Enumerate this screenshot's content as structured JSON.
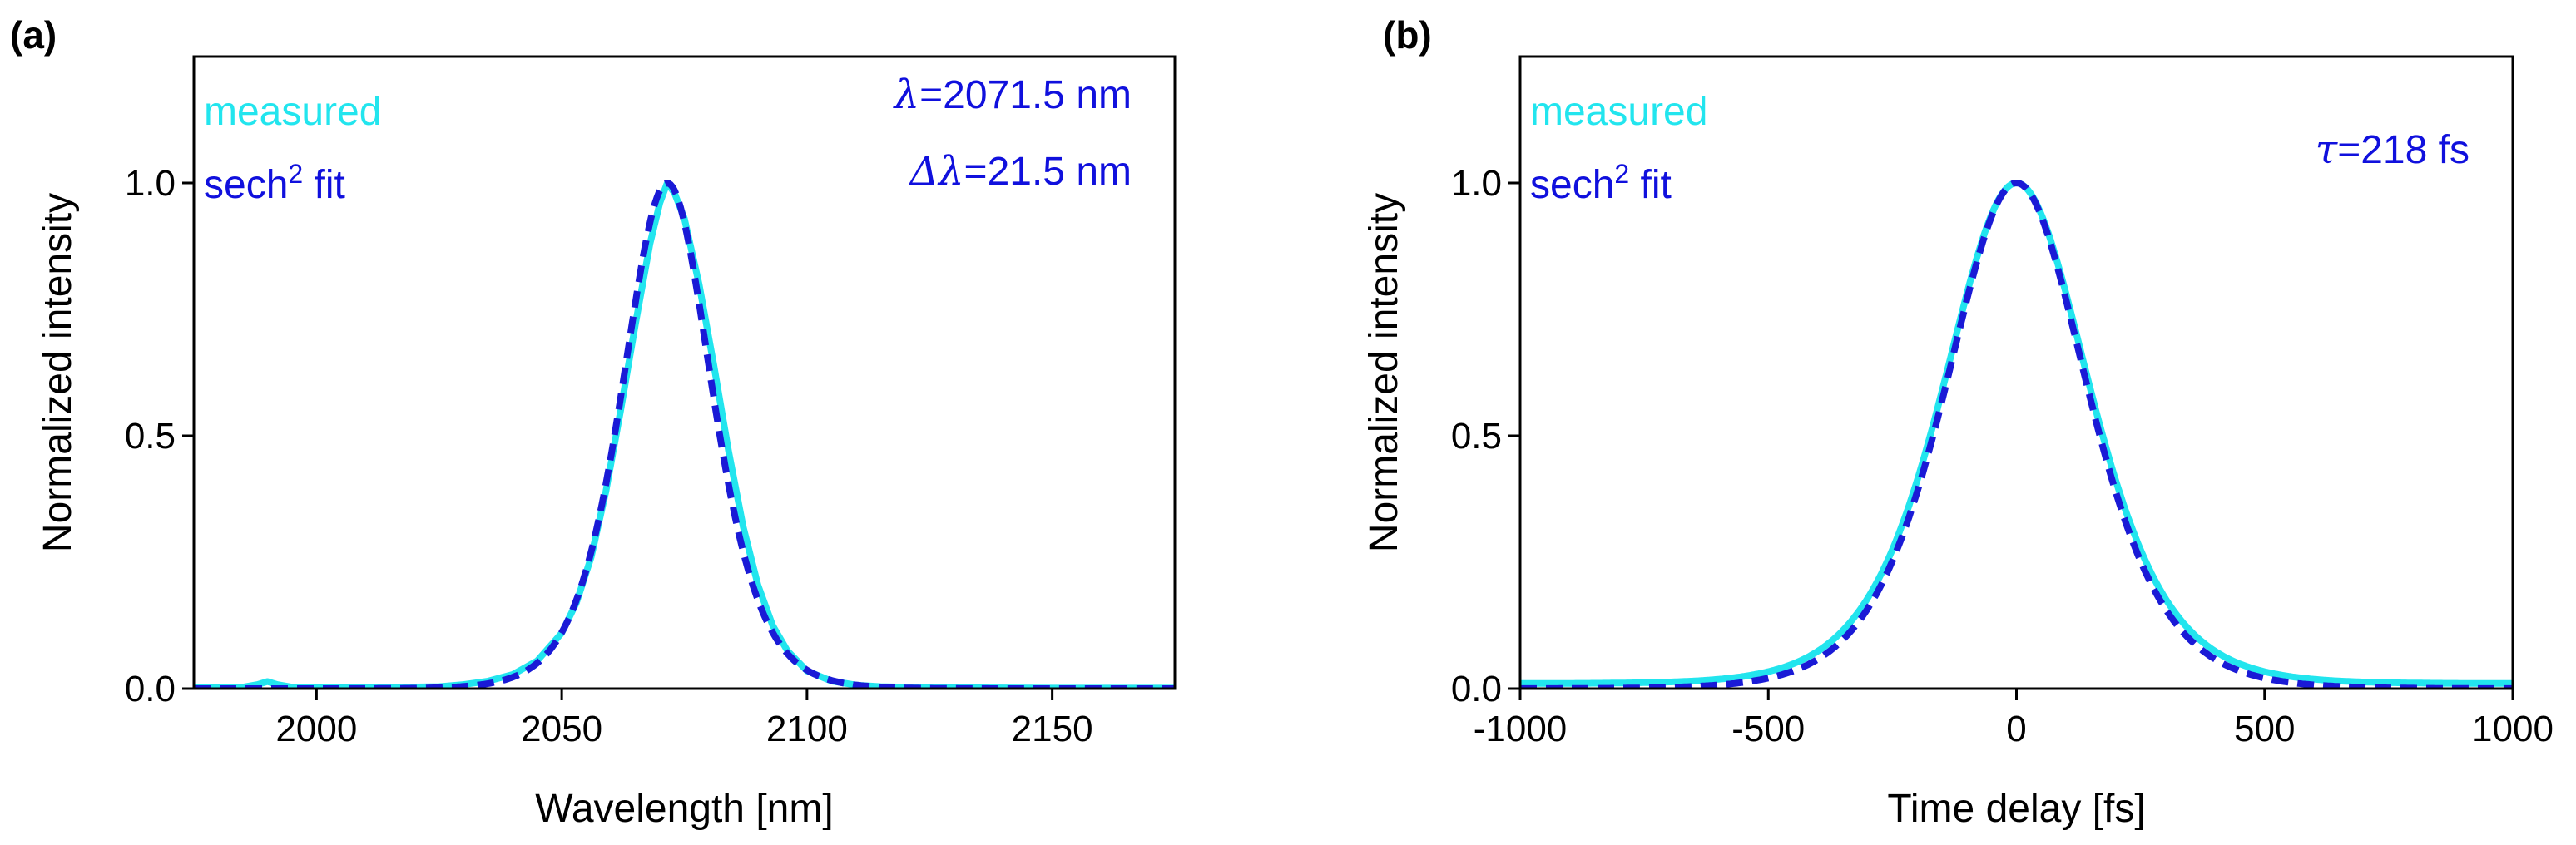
{
  "chart_data": [
    {
      "type": "line",
      "panel_label": "(a)",
      "xlabel": "Wavelength [nm]",
      "ylabel": "Normalized intensity",
      "xlim": [
        1975,
        2175
      ],
      "ylim": [
        0,
        1.25
      ],
      "xticks": [
        2000,
        2050,
        2100,
        2150
      ],
      "xtick_labels": [
        "2000",
        "2050",
        "2100",
        "2150"
      ],
      "yticks": [
        0.0,
        0.5,
        1.0
      ],
      "ytick_labels": [
        "0.0",
        "0.5",
        "1.0"
      ],
      "legend": {
        "position": "top-left",
        "entries": [
          {
            "label": "measured",
            "color": "#22e5ee"
          },
          {
            "label": "sech",
            "superscript": "2",
            "suffix": " fit",
            "color": "#1010dd"
          }
        ]
      },
      "annotations": [
        {
          "symbol": "λ",
          "text": "=2071.5 nm"
        },
        {
          "symbol": "Δλ",
          "text": "=21.5 nm"
        }
      ],
      "series": [
        {
          "name": "measured",
          "color": "#22e5ee",
          "style": "solid",
          "x": [
            1975,
            1985,
            1988,
            1990,
            1992,
            1995,
            2010,
            2025,
            2030,
            2035,
            2040,
            2045,
            2050,
            2053,
            2056,
            2059,
            2062,
            2065,
            2068,
            2070,
            2071.5,
            2073,
            2075,
            2078,
            2081,
            2084,
            2087,
            2090,
            2093,
            2096,
            2100,
            2105,
            2110,
            2115,
            2125,
            2150,
            2175
          ],
          "y": [
            0.002,
            0.003,
            0.008,
            0.014,
            0.008,
            0.003,
            0.002,
            0.004,
            0.008,
            0.015,
            0.028,
            0.055,
            0.11,
            0.17,
            0.26,
            0.39,
            0.55,
            0.72,
            0.88,
            0.96,
            1.0,
            0.98,
            0.93,
            0.8,
            0.64,
            0.47,
            0.32,
            0.205,
            0.125,
            0.075,
            0.035,
            0.015,
            0.007,
            0.004,
            0.002,
            0.001,
            0.001
          ]
        },
        {
          "name": "sech2 fit",
          "color": "#1a1ad6",
          "style": "dashed",
          "fit": {
            "form": "sech2",
            "center": 2071.5,
            "fwhm": 21.5
          }
        }
      ]
    },
    {
      "type": "line",
      "panel_label": "(b)",
      "xlabel": "Time delay [fs]",
      "ylabel": "Normalized intensity",
      "xlim": [
        -1000,
        1000
      ],
      "ylim": [
        0,
        1.25
      ],
      "xticks": [
        -1000,
        -500,
        0,
        500,
        1000
      ],
      "xtick_labels": [
        "-1000",
        "-500",
        "0",
        "500",
        "1000"
      ],
      "yticks": [
        0.0,
        0.5,
        1.0
      ],
      "ytick_labels": [
        "0.0",
        "0.5",
        "1.0"
      ],
      "legend": {
        "position": "top-left",
        "entries": [
          {
            "label": "measured",
            "color": "#22e5ee"
          },
          {
            "label": "sech",
            "superscript": "2",
            "suffix": " fit",
            "color": "#1010dd"
          }
        ]
      },
      "annotations": [
        {
          "symbol": "τ",
          "text": "=218 fs"
        }
      ],
      "series": [
        {
          "name": "measured",
          "color": "#22e5ee",
          "style": "solid",
          "fit": {
            "form": "sech2",
            "center": 0,
            "fwhm": 345,
            "baseline": 0.01
          }
        },
        {
          "name": "sech2 fit",
          "color": "#1a1ad6",
          "style": "dashed",
          "fit": {
            "form": "sech2",
            "center": 0,
            "fwhm": 336
          }
        }
      ]
    }
  ]
}
